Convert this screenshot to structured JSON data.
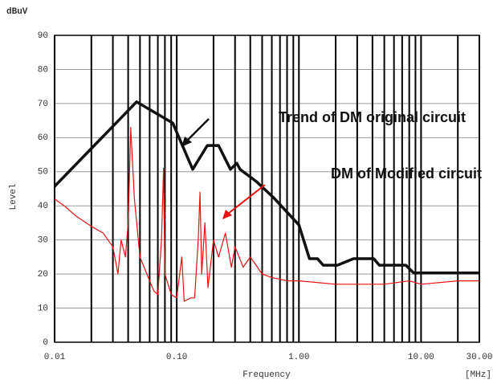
{
  "chart_data": {
    "type": "line",
    "unit_label": "dBuV",
    "ylabel": "Level",
    "xlabel": "Frequency",
    "xunit_label": "[MHz]",
    "log_x": true,
    "grid": true,
    "xlim": [
      0.01,
      30
    ],
    "ylim": [
      0,
      90
    ],
    "xticks": [
      0.01,
      {
        "value": 0.1,
        "label": "0.10"
      },
      {
        "value": 1,
        "label": "1.00"
      },
      {
        "value": 10,
        "label": "10.00"
      },
      {
        "value": 30,
        "label": "30.00"
      }
    ],
    "xgrid": [
      0.02,
      0.03,
      0.04,
      0.05,
      0.06,
      0.07,
      0.08,
      0.09,
      0.2,
      0.3,
      0.4,
      0.5,
      0.6,
      0.7,
      0.8,
      0.9,
      2,
      3,
      4,
      5,
      6,
      7,
      8,
      9,
      20
    ],
    "yticks": [
      0,
      10,
      20,
      30,
      40,
      50,
      60,
      70,
      80,
      90
    ],
    "series": [
      {
        "name": "DM of Modified circuit",
        "color": "#ee1111",
        "x": [
          0.01,
          0.012,
          0.015,
          0.02,
          0.025,
          0.03,
          0.033,
          0.035,
          0.038,
          0.04,
          0.042,
          0.045,
          0.05,
          0.06,
          0.065,
          0.07,
          0.075,
          0.078,
          0.08,
          0.09,
          0.1,
          0.11,
          0.115,
          0.13,
          0.14,
          0.15,
          0.155,
          0.16,
          0.17,
          0.18,
          0.2,
          0.22,
          0.25,
          0.28,
          0.3,
          0.35,
          0.4,
          0.5,
          0.6,
          0.8,
          1,
          2,
          5,
          8,
          10,
          20,
          30
        ],
        "values": [
          42,
          40,
          37,
          34,
          32,
          28,
          20,
          30,
          25,
          35,
          63,
          42,
          25,
          18,
          15,
          14,
          30,
          51,
          20,
          14,
          13,
          25,
          12,
          13,
          13,
          30,
          44,
          20,
          35,
          16,
          30,
          25,
          32,
          22,
          28,
          22,
          25,
          20,
          19,
          18,
          18,
          17,
          17,
          18,
          17,
          18,
          18
        ]
      },
      {
        "name": "Trend of DM original circuit",
        "color": "#111111",
        "x": [
          0.01,
          0.0469,
          0.0927,
          0.135,
          0.178,
          0.22,
          0.275,
          0.31,
          0.33,
          0.45,
          0.62,
          1.0,
          1.22,
          1.42,
          1.58,
          2.07,
          2.8,
          4.1,
          4.55,
          7.5,
          8.7,
          30
        ],
        "values": [
          45.7,
          70.5,
          64.3,
          50.7,
          57.7,
          57.7,
          50.7,
          52.5,
          50.7,
          47.1,
          42.4,
          34.4,
          24.5,
          24.5,
          22.6,
          22.6,
          24.5,
          24.5,
          22.6,
          22.6,
          20.3,
          20.3
        ]
      }
    ]
  }
}
